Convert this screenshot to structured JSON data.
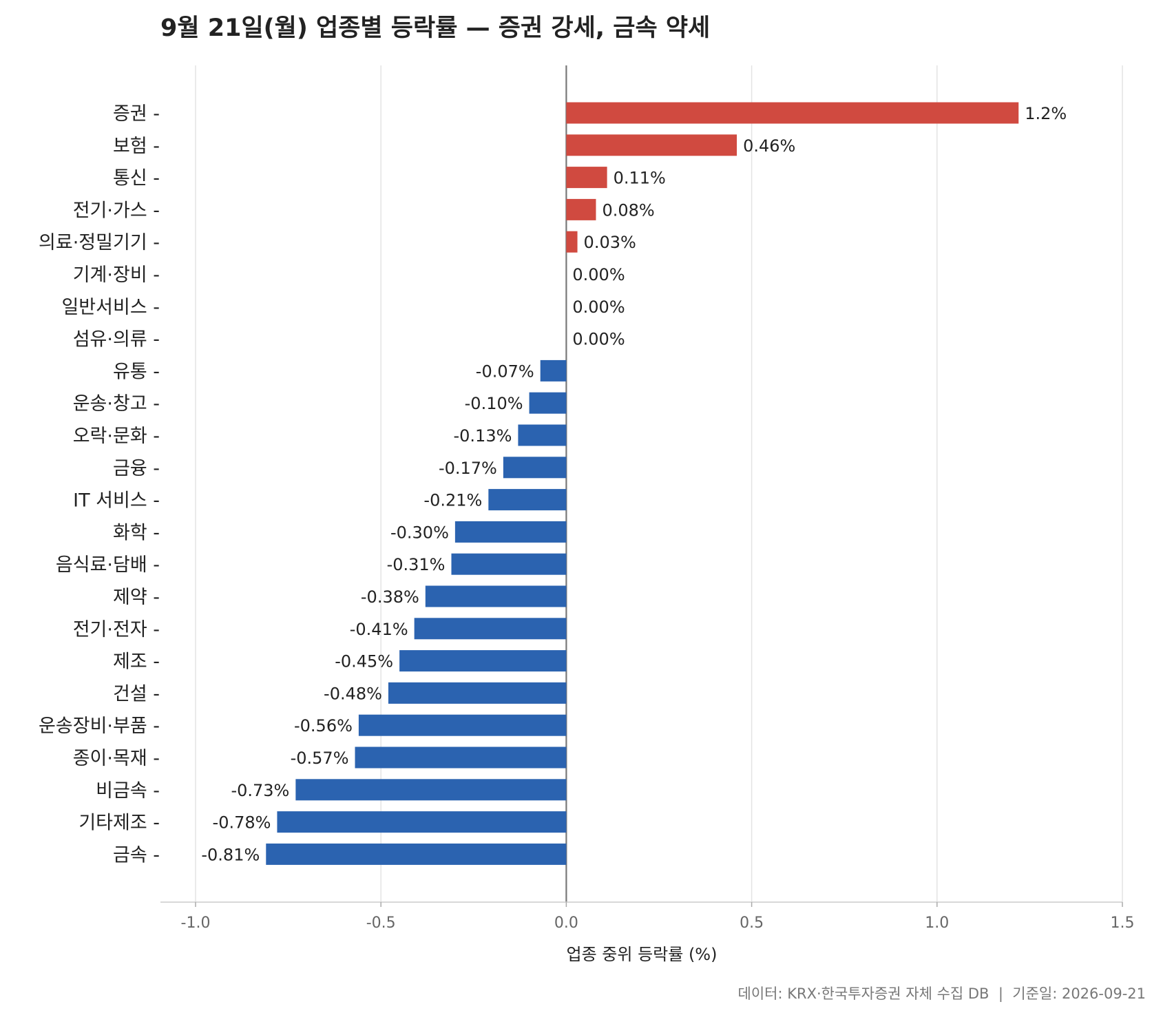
{
  "chart_data": {
    "type": "bar",
    "orientation": "horizontal",
    "title": "9월 21일(월) 업종별 등락률 — 증권 강세, 금속 약세",
    "xlabel": "업종 중위 등락률 (%)",
    "ylabel": "",
    "xlim": [
      -1.0,
      1.5
    ],
    "xticks": [
      "-1.0",
      "-0.5",
      "0.0",
      "0.5",
      "1.0",
      "1.5"
    ],
    "xtick_values": [
      -1.0,
      -0.5,
      0.0,
      0.5,
      1.0,
      1.5
    ],
    "grid": "vertical",
    "categories": [
      "증권",
      "보험",
      "통신",
      "전기·가스",
      "의료·정밀기기",
      "기계·장비",
      "일반서비스",
      "섬유·의류",
      "유통",
      "운송·창고",
      "오락·문화",
      "금융",
      "IT 서비스",
      "화학",
      "음식료·담배",
      "제약",
      "전기·전자",
      "제조",
      "건설",
      "운송장비·부품",
      "종이·목재",
      "비금속",
      "기타제조",
      "금속"
    ],
    "values": [
      1.22,
      0.46,
      0.11,
      0.08,
      0.03,
      0.0,
      0.0,
      0.0,
      -0.07,
      -0.1,
      -0.13,
      -0.17,
      -0.21,
      -0.3,
      -0.31,
      -0.38,
      -0.41,
      -0.45,
      -0.48,
      -0.56,
      -0.57,
      -0.73,
      -0.78,
      -0.81
    ],
    "value_labels": [
      "1.2%",
      "0.46%",
      "0.11%",
      "0.08%",
      "0.03%",
      "0.00%",
      "0.00%",
      "0.00%",
      "-0.07%",
      "-0.10%",
      "-0.13%",
      "-0.17%",
      "-0.21%",
      "-0.30%",
      "-0.31%",
      "-0.38%",
      "-0.41%",
      "-0.45%",
      "-0.48%",
      "-0.56%",
      "-0.57%",
      "-0.73%",
      "-0.78%",
      "-0.81%"
    ],
    "colors": {
      "positive": "#d04a40",
      "negative": "#2b63b0",
      "zero_line": "#777777",
      "grid": "#e3e3e3"
    },
    "footer": "데이터: KRX·한국투자증권 자체 수집 DB  |  기준일: 2026-09-21"
  }
}
